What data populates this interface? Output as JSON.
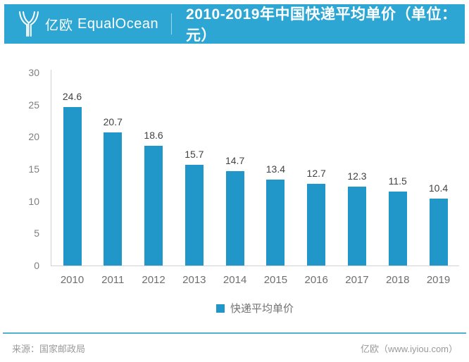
{
  "header": {
    "brand_cn": "亿欧",
    "brand_en": "EqualOcean",
    "title": "2010-2019年中国快递平均单价（单位：元）"
  },
  "icons": {
    "logo": "equalocean-y-logo-icon"
  },
  "colors": {
    "banner": "#2ea6d3",
    "bar": "#2196c8",
    "axis_line": "#cfd3d6",
    "footer_line": "#55b0cf"
  },
  "chart_data": {
    "type": "bar",
    "title": "2010-2019年中国快递平均单价（单位：元）",
    "unit": "元",
    "categories": [
      "2010",
      "2011",
      "2012",
      "2013",
      "2014",
      "2015",
      "2016",
      "2017",
      "2018",
      "2019"
    ],
    "values": [
      24.6,
      20.7,
      18.6,
      15.7,
      14.7,
      13.4,
      12.7,
      12.3,
      11.5,
      10.4
    ],
    "legend": "快递平均单价",
    "ylim": [
      0,
      30
    ],
    "ytick_step": 5,
    "yticks": [
      0,
      5,
      10,
      15,
      20,
      25,
      30
    ],
    "grid": false,
    "legend_position": "bottom"
  },
  "footer": {
    "source": "来源：国家邮政局",
    "credit": "亿欧（www.iyiou.com）"
  }
}
